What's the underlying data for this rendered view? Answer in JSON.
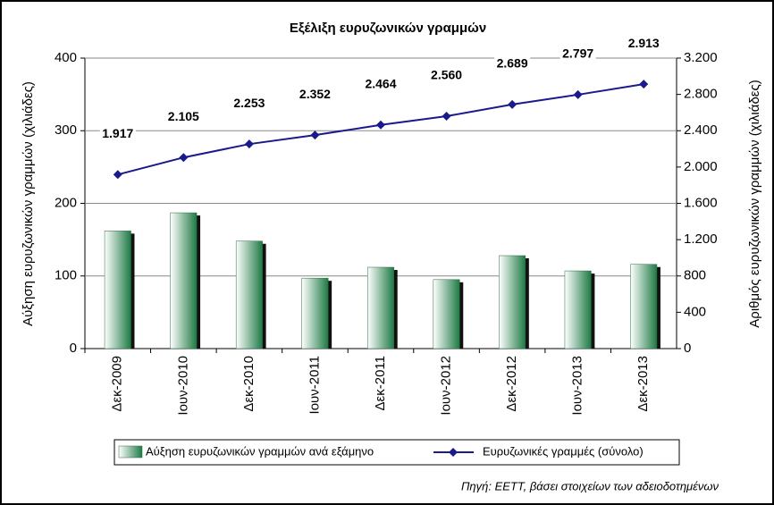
{
  "chart_data": {
    "type": "bar",
    "title": "Εξέλιξη ευρυζωνικών γραμμών",
    "ylabel": "Αύξηση ευρυζωνικών γραμμών (χιλιάδες)",
    "y2label": "Αριθμός ευρυζωνικών γραμμών (χιλιάδες)",
    "source": "Πηγή: ΕΕΤΤ, βάσει στοιχείων των αδειοδοτημένων",
    "categories": [
      "Δεκ-2009",
      "Ιουν-2010",
      "Δεκ-2010",
      "Ιουν-2011",
      "Δεκ-2011",
      "Ιουν-2012",
      "Δεκ-2012",
      "Ιουν-2013",
      "Δεκ-2013"
    ],
    "series": [
      {
        "name": "Αύξηση ευρυζωνικών γραμμών ανά εξάμηνο",
        "type": "bar",
        "color": "#1e7a45",
        "values": [
          162,
          187,
          148,
          97,
          112,
          95,
          128,
          107,
          116
        ]
      },
      {
        "name": "Ευρυζωνικές γραμμές (σύνολο)",
        "type": "line",
        "axis": "y2",
        "color": "#1a1a8c",
        "values": [
          1917,
          2105,
          2253,
          2352,
          2464,
          2560,
          2689,
          2797,
          2913
        ],
        "value_labels": [
          "1.917",
          "2.105",
          "2.253",
          "2.352",
          "2.464",
          "2.560",
          "2.689",
          "2.797",
          "2.913"
        ]
      }
    ],
    "ylim": [
      0,
      400
    ],
    "yticks": [
      0,
      100,
      200,
      300,
      400
    ],
    "y2lim": [
      0,
      3200
    ],
    "y2ticks": [
      0,
      400,
      800,
      {
        "value": 1200,
        "label": "1.200"
      },
      {
        "value": 1600,
        "label": "1.600"
      },
      {
        "value": 2000,
        "label": "2.000"
      },
      {
        "value": 2400,
        "label": "2.400"
      },
      {
        "value": 2800,
        "label": "2.800"
      },
      {
        "value": 3200,
        "label": "3.200"
      }
    ],
    "grid": true
  }
}
